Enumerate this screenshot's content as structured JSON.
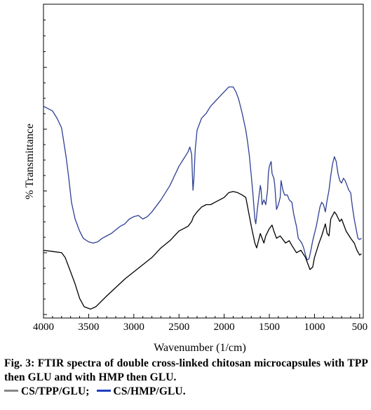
{
  "chart_data": {
    "type": "line",
    "xlabel": "Wavenumber (1/cm)",
    "ylabel": "% Transmittance",
    "xlim": [
      4000,
      460
    ],
    "x_reversed": true,
    "xticks": [
      4000,
      3500,
      3000,
      2500,
      2000,
      1500,
      1000,
      500
    ],
    "ylim": [
      0,
      100
    ],
    "y_tick_labels_shown": false,
    "grid": false,
    "series": [
      {
        "name": "CS/TPP/GLU",
        "color": "#000000",
        "points": [
          [
            4000,
            25
          ],
          [
            3900,
            24.5
          ],
          [
            3800,
            24
          ],
          [
            3760,
            22
          ],
          [
            3720,
            18
          ],
          [
            3650,
            11
          ],
          [
            3600,
            5
          ],
          [
            3550,
            1.5
          ],
          [
            3480,
            0.5
          ],
          [
            3420,
            1.5
          ],
          [
            3300,
            6
          ],
          [
            3200,
            9.5
          ],
          [
            3100,
            13
          ],
          [
            3000,
            16
          ],
          [
            2900,
            19
          ],
          [
            2800,
            22
          ],
          [
            2700,
            26
          ],
          [
            2600,
            29
          ],
          [
            2500,
            33
          ],
          [
            2450,
            34
          ],
          [
            2400,
            35
          ],
          [
            2360,
            37
          ],
          [
            2340,
            39
          ],
          [
            2300,
            41
          ],
          [
            2250,
            43
          ],
          [
            2200,
            44
          ],
          [
            2150,
            44
          ],
          [
            2100,
            45
          ],
          [
            2000,
            47
          ],
          [
            1950,
            49
          ],
          [
            1900,
            49.5
          ],
          [
            1850,
            49
          ],
          [
            1800,
            48
          ],
          [
            1760,
            47
          ],
          [
            1740,
            43
          ],
          [
            1700,
            35
          ],
          [
            1660,
            28
          ],
          [
            1640,
            26
          ],
          [
            1620,
            29
          ],
          [
            1600,
            32
          ],
          [
            1580,
            30
          ],
          [
            1560,
            28
          ],
          [
            1540,
            31
          ],
          [
            1500,
            34
          ],
          [
            1470,
            35.5
          ],
          [
            1450,
            33
          ],
          [
            1420,
            30
          ],
          [
            1380,
            31
          ],
          [
            1320,
            28
          ],
          [
            1280,
            29
          ],
          [
            1250,
            27
          ],
          [
            1200,
            24
          ],
          [
            1150,
            25
          ],
          [
            1100,
            22
          ],
          [
            1070,
            19
          ],
          [
            1050,
            17
          ],
          [
            1020,
            18
          ],
          [
            1000,
            22
          ],
          [
            950,
            28
          ],
          [
            920,
            31
          ],
          [
            880,
            36
          ],
          [
            860,
            32
          ],
          [
            840,
            31
          ],
          [
            820,
            38
          ],
          [
            780,
            41
          ],
          [
            760,
            40
          ],
          [
            720,
            37
          ],
          [
            700,
            38
          ],
          [
            650,
            33
          ],
          [
            600,
            30
          ],
          [
            560,
            28
          ],
          [
            530,
            25
          ],
          [
            500,
            23
          ],
          [
            480,
            23.5
          ]
        ]
      },
      {
        "name": "CS/HMP/GLU",
        "color": "#2e3f94",
        "points": [
          [
            4000,
            85
          ],
          [
            3950,
            84
          ],
          [
            3900,
            83
          ],
          [
            3850,
            80
          ],
          [
            3800,
            76
          ],
          [
            3750,
            64
          ],
          [
            3720,
            55
          ],
          [
            3690,
            45
          ],
          [
            3650,
            38
          ],
          [
            3600,
            33
          ],
          [
            3560,
            30
          ],
          [
            3500,
            28.5
          ],
          [
            3450,
            28
          ],
          [
            3400,
            28.5
          ],
          [
            3350,
            30
          ],
          [
            3300,
            31
          ],
          [
            3250,
            32
          ],
          [
            3200,
            33.5
          ],
          [
            3150,
            35
          ],
          [
            3100,
            36
          ],
          [
            3050,
            38
          ],
          [
            3000,
            39
          ],
          [
            2950,
            39.5
          ],
          [
            2900,
            38
          ],
          [
            2850,
            39
          ],
          [
            2800,
            41
          ],
          [
            2700,
            46
          ],
          [
            2600,
            52
          ],
          [
            2500,
            60
          ],
          [
            2450,
            63
          ],
          [
            2400,
            66
          ],
          [
            2380,
            68
          ],
          [
            2360,
            65
          ],
          [
            2350,
            55
          ],
          [
            2345,
            50
          ],
          [
            2335,
            55
          ],
          [
            2320,
            67
          ],
          [
            2300,
            75
          ],
          [
            2250,
            80
          ],
          [
            2200,
            82
          ],
          [
            2150,
            85
          ],
          [
            2100,
            87
          ],
          [
            2050,
            89
          ],
          [
            2000,
            91
          ],
          [
            1950,
            93
          ],
          [
            1900,
            93
          ],
          [
            1870,
            91
          ],
          [
            1840,
            88
          ],
          [
            1800,
            82
          ],
          [
            1760,
            75
          ],
          [
            1740,
            70
          ],
          [
            1720,
            64
          ],
          [
            1700,
            56
          ],
          [
            1680,
            48
          ],
          [
            1660,
            38
          ],
          [
            1650,
            36
          ],
          [
            1630,
            43
          ],
          [
            1610,
            49
          ],
          [
            1600,
            52
          ],
          [
            1590,
            50
          ],
          [
            1580,
            44
          ],
          [
            1560,
            46
          ],
          [
            1540,
            44
          ],
          [
            1520,
            50
          ],
          [
            1510,
            57
          ],
          [
            1500,
            60
          ],
          [
            1480,
            62
          ],
          [
            1470,
            57
          ],
          [
            1450,
            55
          ],
          [
            1440,
            52
          ],
          [
            1420,
            42
          ],
          [
            1400,
            44
          ],
          [
            1380,
            47
          ],
          [
            1370,
            54
          ],
          [
            1350,
            50
          ],
          [
            1330,
            48
          ],
          [
            1300,
            48
          ],
          [
            1280,
            46
          ],
          [
            1250,
            45
          ],
          [
            1230,
            40
          ],
          [
            1200,
            35
          ],
          [
            1180,
            30
          ],
          [
            1160,
            29
          ],
          [
            1140,
            28
          ],
          [
            1120,
            26
          ],
          [
            1100,
            23
          ],
          [
            1080,
            21
          ],
          [
            1060,
            21.5
          ],
          [
            1040,
            25
          ],
          [
            1020,
            29
          ],
          [
            1000,
            32
          ],
          [
            980,
            35
          ],
          [
            960,
            39
          ],
          [
            940,
            43
          ],
          [
            920,
            45
          ],
          [
            900,
            44
          ],
          [
            880,
            41
          ],
          [
            860,
            46
          ],
          [
            840,
            50
          ],
          [
            820,
            56
          ],
          [
            800,
            61
          ],
          [
            780,
            64
          ],
          [
            760,
            62
          ],
          [
            740,
            57
          ],
          [
            720,
            54
          ],
          [
            700,
            53
          ],
          [
            680,
            55
          ],
          [
            660,
            54
          ],
          [
            640,
            52
          ],
          [
            620,
            50
          ],
          [
            600,
            49
          ],
          [
            580,
            43
          ],
          [
            560,
            38
          ],
          [
            540,
            34
          ],
          [
            520,
            30
          ],
          [
            500,
            29.5
          ],
          [
            480,
            30
          ]
        ]
      }
    ]
  },
  "caption": {
    "text": "Fig. 3: FTIR spectra of double cross-linked chitosan microcapsules with TPP then GLU and with HMP then GLU.",
    "legend": [
      {
        "label": "CS/TPP/GLU;",
        "color": "#888888"
      },
      {
        "label": "CS/HMP/GLU.",
        "color": "#1f3fbf"
      }
    ]
  }
}
